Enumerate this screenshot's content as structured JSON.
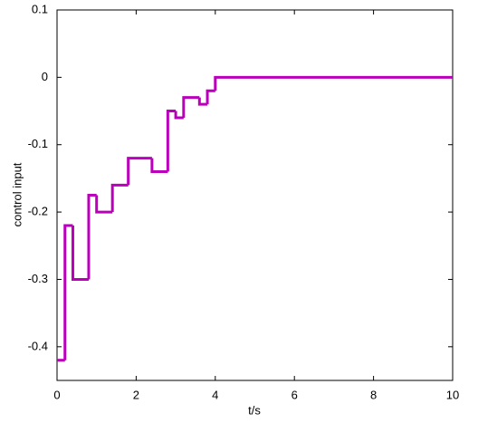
{
  "chart_data": {
    "type": "line",
    "step": "post",
    "x": [
      0,
      0.2,
      0.4,
      0.8,
      1.0,
      1.4,
      1.8,
      2.4,
      2.8,
      3.0,
      3.2,
      3.6,
      3.8,
      4.0,
      10
    ],
    "values": [
      -0.42,
      -0.22,
      -0.3,
      -0.175,
      -0.2,
      -0.16,
      -0.12,
      -0.14,
      -0.05,
      -0.06,
      -0.03,
      -0.04,
      -0.02,
      0,
      0
    ],
    "color": "#bb00bb",
    "xlabel": "t/s",
    "ylabel": "control input",
    "xlim": [
      0,
      10
    ],
    "xticks": [
      0,
      2,
      4,
      6,
      8,
      10
    ],
    "ylim": [
      -0.45,
      0.1
    ],
    "yticks": [
      -0.4,
      -0.3,
      -0.2,
      -0.1,
      0,
      0.1
    ]
  }
}
